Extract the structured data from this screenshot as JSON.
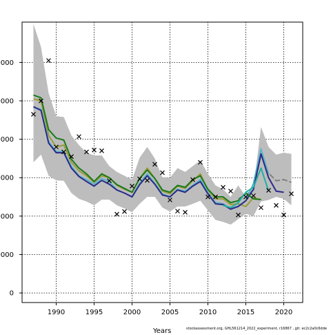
{
  "chart_data": {
    "type": "line",
    "xlabel": "Years",
    "footer": "stockassessment.org, GHL561214_2022_experiment, r16867 , git: ec2c2a0c6dde",
    "xlim": [
      1985.5,
      2022.5
    ],
    "ylim": [
      -25000,
      705000
    ],
    "x_ticks": [
      1990,
      1995,
      2000,
      2005,
      2010,
      2015,
      2020
    ],
    "y_ticks": [
      0,
      100000,
      200000,
      300000,
      400000,
      500000,
      600000
    ],
    "y_tick_labels": [
      "0",
      "00000",
      "00000",
      "00000",
      "00000",
      "00000",
      "00000"
    ],
    "grid": true,
    "years": [
      1987,
      1988,
      1989,
      1990,
      1991,
      1992,
      1993,
      1994,
      1995,
      1996,
      1997,
      1998,
      1999,
      2000,
      2001,
      2002,
      2003,
      2004,
      2005,
      2006,
      2007,
      2008,
      2009,
      2010,
      2011,
      2012,
      2013,
      2014,
      2015,
      2016,
      2017,
      2018,
      2019,
      2020,
      2021
    ],
    "confidence_band": {
      "upper": [
        700000,
        640000,
        520000,
        460000,
        458000,
        410000,
        385000,
        365000,
        358000,
        358000,
        330000,
        315000,
        305000,
        295000,
        352000,
        380000,
        350000,
        300000,
        300000,
        325000,
        315000,
        330000,
        345000,
        310000,
        280000,
        270000,
        250000,
        280000,
        250000,
        272000,
        432000,
        380000,
        360000,
        365000,
        362000
      ],
      "lower": [
        340000,
        360000,
        305000,
        293000,
        292000,
        260000,
        245000,
        238000,
        228000,
        243000,
        243000,
        228000,
        220000,
        210000,
        232000,
        250000,
        250000,
        222000,
        212000,
        225000,
        225000,
        232000,
        240000,
        215000,
        190000,
        185000,
        178000,
        192000,
        206000,
        200000,
        238000,
        242000,
        250000,
        245000,
        228000
      ]
    },
    "observations": {
      "x": [
        1987,
        1988,
        1989,
        1990,
        1991,
        1992,
        1993,
        1994,
        1995,
        1996,
        1997,
        1998,
        1999,
        2000,
        2001,
        2002,
        2003,
        2004,
        2005,
        2006,
        2007,
        2008,
        2009,
        2010,
        2011,
        2012,
        2013,
        2014,
        2015,
        2016,
        2017,
        2018,
        2019,
        2020,
        2021
      ],
      "y": [
        465000,
        500000,
        605000,
        380000,
        367000,
        355000,
        407000,
        367000,
        372000,
        370000,
        292000,
        205000,
        212000,
        278000,
        297000,
        293000,
        335000,
        313000,
        242000,
        213000,
        210000,
        295000,
        340000,
        250000,
        250000,
        275000,
        265000,
        203000,
        250000,
        253000,
        222000,
        267000,
        228000,
        203000,
        258000
      ]
    },
    "series": [
      {
        "color": "#808080",
        "dashed": true,
        "x": [
          2014,
          2015,
          2016,
          2017,
          2018,
          2019,
          2020,
          2021
        ],
        "y": [
          245000,
          256000,
          268000,
          361000,
          312000,
          292000,
          295000,
          288000
        ]
      },
      {
        "color": "#9a9a3a",
        "x": [
          1987,
          1988,
          1989,
          1990,
          1991,
          1992,
          1993,
          1994,
          1995,
          1996,
          1997,
          1998,
          1999,
          2000,
          2001,
          2002,
          2003,
          2004,
          2005,
          2006,
          2007,
          2008,
          2009,
          2010,
          2011,
          2012,
          2013,
          2014,
          2015,
          2016,
          2017
        ],
        "y": [
          505000,
          500000,
          410000,
          380000,
          385000,
          340000,
          318000,
          305000,
          288000,
          305000,
          300000,
          280000,
          270000,
          262000,
          298000,
          325000,
          298000,
          265000,
          258000,
          278000,
          272000,
          292000,
          310000,
          268000,
          245000,
          245000,
          230000,
          232000,
          225000,
          248000,
          243000
        ]
      },
      {
        "color": "#5ab4c8",
        "x": [
          1987,
          1988,
          1989,
          1990,
          1991,
          1992,
          1993,
          1994,
          1995,
          1996,
          1997,
          1998,
          1999,
          2000,
          2001,
          2002,
          2003,
          2004,
          2005,
          2006,
          2007,
          2008,
          2009,
          2010,
          2011,
          2012,
          2013,
          2014,
          2015,
          2016,
          2017,
          2018
        ],
        "y": [
          483000,
          478000,
          395000,
          368000,
          368000,
          330000,
          305000,
          295000,
          283000,
          298000,
          290000,
          268000,
          260000,
          250000,
          285000,
          310000,
          285000,
          258000,
          250000,
          270000,
          265000,
          280000,
          295000,
          262000,
          235000,
          232000,
          220000,
          226000,
          240000,
          285000,
          375000,
          310000
        ]
      },
      {
        "color": "#2a2a88",
        "x": [
          1987,
          1988,
          1989,
          1990,
          1991,
          1992,
          1993,
          1994,
          1995,
          1996,
          1997,
          1998,
          1999,
          2000,
          2001,
          2002,
          2003,
          2004,
          2005,
          2006,
          2007,
          2008,
          2009,
          2010,
          2011,
          2012,
          2013,
          2014,
          2015,
          2016,
          2017,
          2018,
          2019,
          2020
        ],
        "y": [
          485000,
          475000,
          390000,
          365000,
          365000,
          325000,
          303000,
          290000,
          278000,
          293000,
          283000,
          268000,
          260000,
          250000,
          282000,
          305000,
          283000,
          255000,
          250000,
          268000,
          262000,
          278000,
          290000,
          258000,
          232000,
          230000,
          218000,
          225000,
          240000,
          270000,
          362000,
          300000,
          265000,
          262000
        ]
      },
      {
        "color": "#1a7a1a",
        "x": [
          1987,
          1988,
          1989,
          1990,
          1991,
          1992,
          1993,
          1994,
          1995,
          1996,
          1997,
          1998,
          1999,
          2000,
          2001,
          2002,
          2003,
          2004,
          2005,
          2006,
          2007,
          2008,
          2009,
          2010,
          2011,
          2012,
          2013,
          2014,
          2015,
          2016,
          2017
        ],
        "y": [
          515000,
          508000,
          425000,
          403000,
          398000,
          348000,
          325000,
          310000,
          290000,
          310000,
          300000,
          282000,
          272000,
          262000,
          298000,
          320000,
          298000,
          268000,
          262000,
          280000,
          275000,
          295000,
          305000,
          270000,
          250000,
          250000,
          235000,
          240000,
          260000,
          245000,
          243000
        ]
      },
      {
        "color": "#1fb0a0",
        "x": [
          2012,
          2013,
          2014,
          2015,
          2016,
          2017,
          2018
        ],
        "y": [
          228000,
          222000,
          235000,
          262000,
          275000,
          325000,
          265000
        ]
      }
    ]
  }
}
